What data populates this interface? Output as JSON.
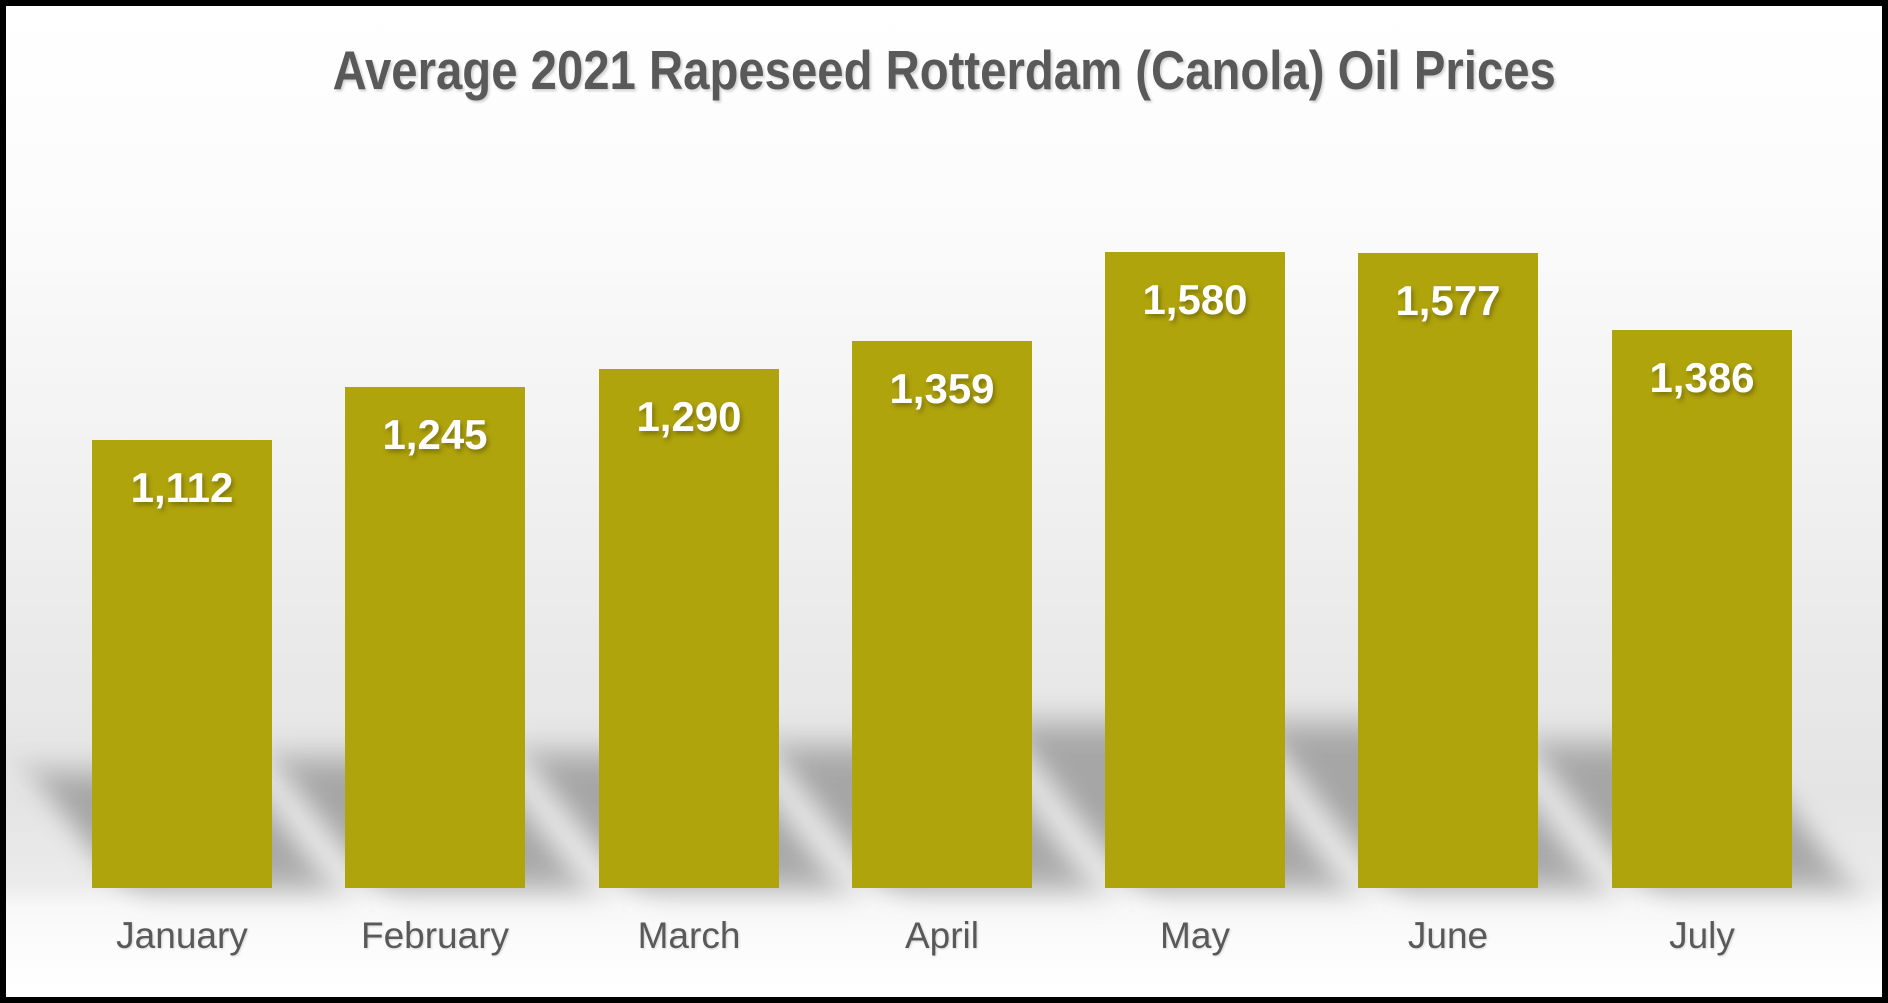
{
  "chart_data": {
    "type": "bar",
    "title": "Average 2021 Rapeseed Rotterdam (Canola) Oil Prices",
    "categories": [
      "January",
      "February",
      "March",
      "April",
      "May",
      "June",
      "July"
    ],
    "values": [
      1112,
      1245,
      1290,
      1359,
      1580,
      1577,
      1386
    ],
    "value_labels": [
      "1,112",
      "1,245",
      "1,290",
      "1,359",
      "1,580",
      "1,577",
      "1,386"
    ],
    "xlabel": "",
    "ylabel": "",
    "ylim": [
      0,
      1580
    ],
    "grid": false,
    "legend": false,
    "value_axis_visible": false,
    "colors": {
      "bar": "#B0A40C",
      "value_label": "#FFFFFF",
      "title": "#595959",
      "axis_label": "#595959",
      "shadow": "#686868",
      "frame": "#000000"
    }
  }
}
